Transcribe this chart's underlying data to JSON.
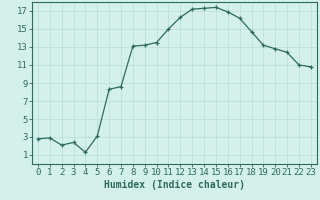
{
  "xlabel": "Humidex (Indice chaleur)",
  "x": [
    0,
    1,
    2,
    3,
    4,
    5,
    6,
    7,
    8,
    9,
    10,
    11,
    12,
    13,
    14,
    15,
    16,
    17,
    18,
    19,
    20,
    21,
    22,
    23
  ],
  "y": [
    2.8,
    2.9,
    2.1,
    2.4,
    1.3,
    3.1,
    8.3,
    8.6,
    13.1,
    13.2,
    13.5,
    15.0,
    16.3,
    17.2,
    17.3,
    17.4,
    16.9,
    16.2,
    14.7,
    13.2,
    12.8,
    12.4,
    11.0,
    10.8
  ],
  "line_color": "#2e6b5e",
  "marker": "+",
  "markersize": 3,
  "linewidth": 0.9,
  "bg_color": "#d4f0eb",
  "grid_color": "#b8ddd7",
  "ylim": [
    0,
    18
  ],
  "yticks": [
    1,
    3,
    5,
    7,
    9,
    11,
    13,
    15,
    17
  ],
  "xticks": [
    0,
    1,
    2,
    3,
    4,
    5,
    6,
    7,
    8,
    9,
    10,
    11,
    12,
    13,
    14,
    15,
    16,
    17,
    18,
    19,
    20,
    21,
    22,
    23
  ],
  "xlabel_fontsize": 7,
  "tick_fontsize": 6.5
}
